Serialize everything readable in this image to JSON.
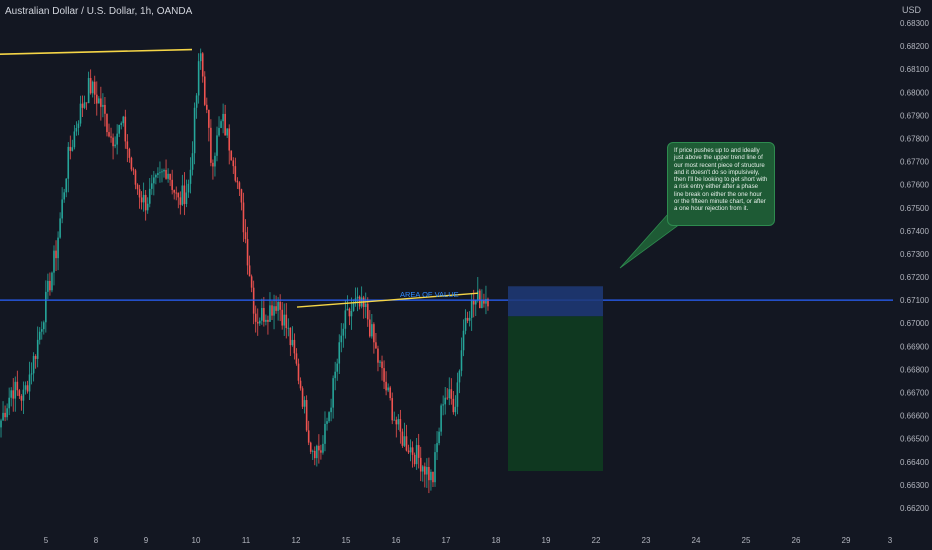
{
  "header": {
    "title": "Australian Dollar / U.S. Dollar, 1h, OANDA",
    "currency": "USD"
  },
  "annotations": {
    "area_of_value_label": "AREA OF VALUE",
    "callout_text": "If price pushes up to and ideally just above the upper trend line of our most recent piece of structure and it doesn't do so impulsively, then I'll be looking to get short with a risk entry either after a phase line break on either the one hour or the fifteen minute chart, or after a one hour rejection from it."
  },
  "colors": {
    "background": "#131722",
    "bull": "#26a69a",
    "bear": "#ef5350",
    "trendline": "#f5d547",
    "level_line": "#2962ff",
    "stop_zone": "#1f3a78",
    "target_zone": "#0f3a21",
    "callout": "#1e5b35"
  },
  "chart_data": {
    "type": "candlestick",
    "title": "Australian Dollar / U.S. Dollar, 1h, OANDA",
    "y_unit": "USD",
    "ylim": [
      0.6615,
      0.6835
    ],
    "y_ticks": [
      "0.68300",
      "0.68200",
      "0.68100",
      "0.68000",
      "0.67900",
      "0.67800",
      "0.67700",
      "0.67600",
      "0.67500",
      "0.67400",
      "0.67300",
      "0.67200",
      "0.67100",
      "0.67000",
      "0.66900",
      "0.66800",
      "0.66700",
      "0.66600",
      "0.66500",
      "0.66400",
      "0.66300",
      "0.66200"
    ],
    "x_ticks": [
      "5",
      "8",
      "9",
      "10",
      "11",
      "12",
      "15",
      "16",
      "17",
      "18",
      "19",
      "22",
      "23",
      "24",
      "25",
      "26",
      "29",
      "3"
    ],
    "grid": false,
    "key_points": [
      0.6658,
      0.6672,
      0.6668,
      0.6685,
      0.6708,
      0.6732,
      0.677,
      0.679,
      0.6803,
      0.6795,
      0.678,
      0.6786,
      0.6762,
      0.6752,
      0.676,
      0.6768,
      0.6752,
      0.676,
      0.6818,
      0.677,
      0.6788,
      0.6772,
      0.674,
      0.6702,
      0.6705,
      0.671,
      0.6695,
      0.6675,
      0.6647,
      0.6645,
      0.6672,
      0.67,
      0.6708,
      0.6705,
      0.6685,
      0.6668,
      0.6652,
      0.6646,
      0.664,
      0.6632,
      0.667,
      0.6665,
      0.6705,
      0.671,
      0.6712
    ],
    "trendline_upper": {
      "from": [
        "4",
        0.68165
      ],
      "to": [
        "10",
        0.68185
      ]
    },
    "trendline_structure": {
      "from": [
        "12",
        0.6707
      ],
      "to": [
        "17",
        0.6713
      ]
    },
    "horizontal_level": 0.671,
    "position": {
      "entry": 0.6703,
      "stop": 0.6716,
      "target": 0.6636,
      "start_x": "18",
      "end_x": "22"
    }
  }
}
